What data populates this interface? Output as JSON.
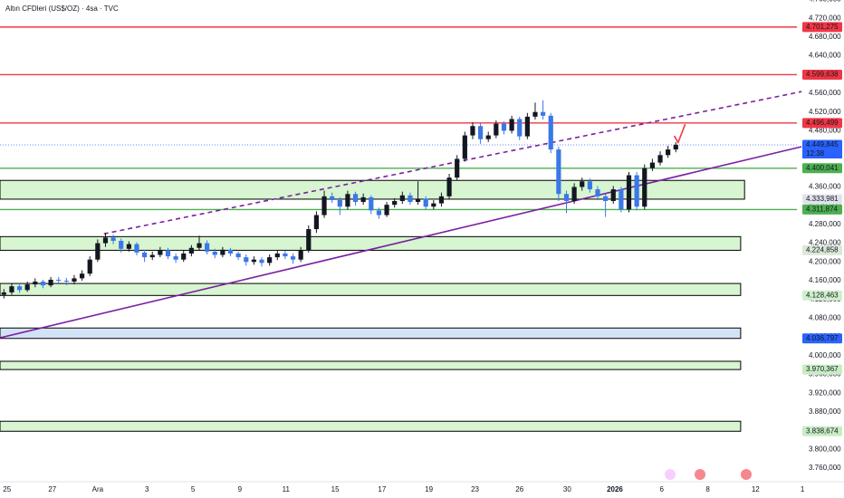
{
  "chart_data": {
    "type": "candlestick",
    "title": "Altın CFDleri (US$/OZ) · 4sa · TVC",
    "up_color": "#131722",
    "down_color": "#3b78e7",
    "xlim": [
      0,
      102
    ],
    "ylim": [
      3731,
      4759
    ],
    "xticks": [
      {
        "value": 0.9,
        "label": "25"
      },
      {
        "value": 6.7,
        "label": "27"
      },
      {
        "value": 12.5,
        "label": "Ara"
      },
      {
        "value": 18.8,
        "label": "3"
      },
      {
        "value": 24.7,
        "label": "5"
      },
      {
        "value": 30.7,
        "label": "9"
      },
      {
        "value": 36.6,
        "label": "11"
      },
      {
        "value": 42.9,
        "label": "15"
      },
      {
        "value": 48.9,
        "label": "17"
      },
      {
        "value": 54.9,
        "label": "19"
      },
      {
        "value": 60.8,
        "label": "23"
      },
      {
        "value": 66.5,
        "label": "26"
      },
      {
        "value": 72.6,
        "label": "30"
      },
      {
        "value": 78.7,
        "label": "2026"
      },
      {
        "value": 84.7,
        "label": "6"
      },
      {
        "value": 90.6,
        "label": "8"
      },
      {
        "value": 96.7,
        "label": "12"
      },
      {
        "value": 102.7,
        "label": "1"
      }
    ],
    "yticks": [
      {
        "value": 3760,
        "label": "3.760,000"
      },
      {
        "value": 3800,
        "label": "3.800,000"
      },
      {
        "value": 3840,
        "label": "3.840,000"
      },
      {
        "value": 3880,
        "label": "3.880,000"
      },
      {
        "value": 3920,
        "label": "3.920,000"
      },
      {
        "value": 3960,
        "label": "3.960,000"
      },
      {
        "value": 4000,
        "label": "4.000,000"
      },
      {
        "value": 4040,
        "label": "4.040,000"
      },
      {
        "value": 4080,
        "label": "4.080,000"
      },
      {
        "value": 4120,
        "label": "4.120,000"
      },
      {
        "value": 4160,
        "label": "4.160,000"
      },
      {
        "value": 4200,
        "label": "4.200,000"
      },
      {
        "value": 4240,
        "label": "4.240,000"
      },
      {
        "value": 4280,
        "label": "4.280,000"
      },
      {
        "value": 4320,
        "label": "4.320,000"
      },
      {
        "value": 4360,
        "label": "4.360,000"
      },
      {
        "value": 4400,
        "label": "4.400,000"
      },
      {
        "value": 4440,
        "label": "4.440,000"
      },
      {
        "value": 4480,
        "label": "4.480,000"
      },
      {
        "value": 4520,
        "label": "4.520,000"
      },
      {
        "value": 4560,
        "label": "4.560,000"
      },
      {
        "value": 4600,
        "label": "4.600,000"
      },
      {
        "value": 4640,
        "label": "4.640,000"
      },
      {
        "value": 4680,
        "label": "4.680,000"
      },
      {
        "value": 4720,
        "label": "4.720,000"
      },
      {
        "value": 4760,
        "label": "4.760,000"
      }
    ],
    "candles": [
      [
        4130,
        4142,
        4122,
        4135
      ],
      [
        4135,
        4155,
        4130,
        4148
      ],
      [
        4148,
        4154,
        4134,
        4140
      ],
      [
        4140,
        4158,
        4136,
        4152
      ],
      [
        4152,
        4165,
        4146,
        4158
      ],
      [
        4158,
        4162,
        4144,
        4150
      ],
      [
        4150,
        4168,
        4146,
        4162
      ],
      [
        4162,
        4168,
        4154,
        4160
      ],
      [
        4160,
        4166,
        4150,
        4158
      ],
      [
        4158,
        4172,
        4152,
        4165
      ],
      [
        4165,
        4182,
        4160,
        4175
      ],
      [
        4175,
        4212,
        4170,
        4205
      ],
      [
        4205,
        4248,
        4200,
        4240
      ],
      [
        4240,
        4262,
        4232,
        4252
      ],
      [
        4252,
        4258,
        4238,
        4245
      ],
      [
        4245,
        4250,
        4220,
        4228
      ],
      [
        4228,
        4244,
        4222,
        4238
      ],
      [
        4238,
        4242,
        4214,
        4220
      ],
      [
        4220,
        4226,
        4200,
        4210
      ],
      [
        4210,
        4222,
        4204,
        4215
      ],
      [
        4215,
        4232,
        4210,
        4225
      ],
      [
        4225,
        4230,
        4206,
        4212
      ],
      [
        4212,
        4218,
        4198,
        4205
      ],
      [
        4205,
        4224,
        4200,
        4218
      ],
      [
        4218,
        4236,
        4212,
        4230
      ],
      [
        4230,
        4256,
        4224,
        4240
      ],
      [
        4240,
        4246,
        4216,
        4222
      ],
      [
        4222,
        4228,
        4208,
        4215
      ],
      [
        4215,
        4232,
        4210,
        4226
      ],
      [
        4226,
        4230,
        4212,
        4218
      ],
      [
        4218,
        4222,
        4204,
        4210
      ],
      [
        4210,
        4216,
        4192,
        4200
      ],
      [
        4200,
        4212,
        4194,
        4205
      ],
      [
        4205,
        4210,
        4190,
        4198
      ],
      [
        4198,
        4216,
        4192,
        4210
      ],
      [
        4210,
        4224,
        4204,
        4218
      ],
      [
        4218,
        4224,
        4206,
        4212
      ],
      [
        4212,
        4218,
        4196,
        4205
      ],
      [
        4205,
        4232,
        4200,
        4225
      ],
      [
        4225,
        4278,
        4220,
        4270
      ],
      [
        4270,
        4308,
        4262,
        4300
      ],
      [
        4300,
        4352,
        4294,
        4340
      ],
      [
        4340,
        4348,
        4326,
        4332
      ],
      [
        4332,
        4338,
        4300,
        4318
      ],
      [
        4318,
        4352,
        4312,
        4345
      ],
      [
        4345,
        4350,
        4320,
        4328
      ],
      [
        4328,
        4346,
        4322,
        4338
      ],
      [
        4338,
        4342,
        4302,
        4310
      ],
      [
        4310,
        4316,
        4292,
        4300
      ],
      [
        4300,
        4328,
        4296,
        4322
      ],
      [
        4322,
        4336,
        4316,
        4330
      ],
      [
        4330,
        4350,
        4324,
        4342
      ],
      [
        4342,
        4348,
        4322,
        4328
      ],
      [
        4328,
        4372,
        4322,
        4335
      ],
      [
        4335,
        4340,
        4312,
        4318
      ],
      [
        4318,
        4332,
        4312,
        4325
      ],
      [
        4325,
        4348,
        4318,
        4340
      ],
      [
        4340,
        4388,
        4334,
        4380
      ],
      [
        4380,
        4428,
        4374,
        4420
      ],
      [
        4420,
        4478,
        4414,
        4470
      ],
      [
        4470,
        4498,
        4462,
        4490
      ],
      [
        4490,
        4496,
        4452,
        4462
      ],
      [
        4462,
        4478,
        4456,
        4470
      ],
      [
        4470,
        4502,
        4464,
        4495
      ],
      [
        4495,
        4500,
        4472,
        4480
      ],
      [
        4480,
        4512,
        4474,
        4505
      ],
      [
        4505,
        4510,
        4460,
        4468
      ],
      [
        4468,
        4518,
        4462,
        4510
      ],
      [
        4510,
        4540,
        4504,
        4520
      ],
      [
        4520,
        4545,
        4504,
        4512
      ],
      [
        4512,
        4518,
        4432,
        4440
      ],
      [
        4440,
        4446,
        4330,
        4345
      ],
      [
        4345,
        4352,
        4304,
        4330
      ],
      [
        4330,
        4368,
        4324,
        4360
      ],
      [
        4360,
        4380,
        4352,
        4372
      ],
      [
        4372,
        4378,
        4348,
        4355
      ],
      [
        4355,
        4362,
        4332,
        4340
      ],
      [
        4340,
        4346,
        4296,
        4330
      ],
      [
        4330,
        4362,
        4324,
        4355
      ],
      [
        4355,
        4360,
        4306,
        4312
      ],
      [
        4312,
        4392,
        4306,
        4385
      ],
      [
        4385,
        4392,
        4310,
        4318
      ],
      [
        4318,
        4408,
        4312,
        4400
      ],
      [
        4400,
        4420,
        4394,
        4412
      ],
      [
        4412,
        4436,
        4406,
        4428
      ],
      [
        4428,
        4448,
        4422,
        4440
      ],
      [
        4440,
        4456,
        4434,
        4450
      ]
    ],
    "levels": [
      {
        "value": 4701.275,
        "label": "4.701,275",
        "color": "#f23645",
        "line": "solid"
      },
      {
        "value": 4599.638,
        "label": "4.599,638",
        "color": "#f23645",
        "line": "solid"
      },
      {
        "value": 4496.499,
        "label": "4.496,499",
        "color": "#f23645",
        "line": "solid"
      },
      {
        "value": 4449.845,
        "label": "4.449,845",
        "sublabel": "12:38",
        "color": "#2962ff",
        "line": "dotted"
      },
      {
        "value": 4400.041,
        "label": "4.400,041",
        "color": "#4caf50",
        "line": "solid"
      },
      {
        "value": 4311.874,
        "label": "4.311,874",
        "color": "#4caf50",
        "line": "solid"
      }
    ],
    "zones": [
      {
        "x": [
          0,
          95.3
        ],
        "top": 4374,
        "bottom": 4333.981,
        "label": "4.333,981",
        "color": "#d6f5d0",
        "badge_color": "#e0e3eb"
      },
      {
        "x": [
          0,
          94.8
        ],
        "top": 4254,
        "bottom": 4224.858,
        "label": "4.224,858",
        "color": "#d6f5d0",
        "badge_color": "#dbe8d8"
      },
      {
        "x": [
          0,
          94.8
        ],
        "top": 4154,
        "bottom": 4128.463,
        "label": "4.128,463",
        "color": "#d6f5d0",
        "badge_color": "#d0efcb"
      },
      {
        "x": [
          0,
          94.8
        ],
        "top": 4059,
        "bottom": 4036.797,
        "label": "4.036,797",
        "color": "#d3e3f7",
        "badge_color": "#2962ff"
      },
      {
        "x": [
          0,
          94.8
        ],
        "top": 3988,
        "bottom": 3970.367,
        "label": "3.970,367",
        "color": "#d6f5d0",
        "badge_color": "#c8ecc3"
      },
      {
        "x": [
          0,
          94.8
        ],
        "top": 3860,
        "bottom": 3838.674,
        "label": "3.838,674",
        "color": "#d6f5d0",
        "badge_color": "#c8ecc3"
      }
    ],
    "trendlines": [
      {
        "x": [
          0,
          102.6
        ],
        "y": [
          4038,
          4446
        ],
        "color": "#7b1fa2",
        "dash": false
      },
      {
        "x": [
          13.3,
          102.6
        ],
        "y": [
          4260,
          4563.5
        ],
        "color": "#7b1fa2",
        "dash": true
      },
      {
        "x": [
          86.3,
          86.8,
          87.7
        ],
        "y": [
          4469,
          4455,
          4494
        ],
        "color": "#f23645",
        "dash": false
      }
    ]
  }
}
